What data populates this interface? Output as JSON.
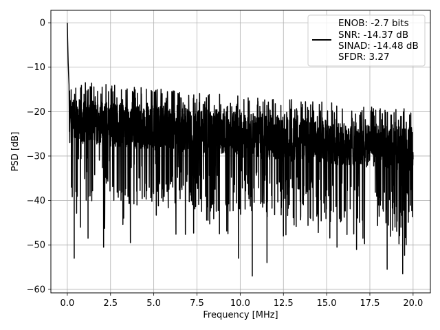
{
  "chart_data": {
    "type": "line",
    "title": "",
    "xlabel": "Frequency [MHz]",
    "ylabel": "PSD [dB]",
    "xlim": [
      -0.95,
      21.0
    ],
    "ylim": [
      -60.8,
      2.8
    ],
    "xticks": [
      0.0,
      2.5,
      5.0,
      7.5,
      10.0,
      12.5,
      15.0,
      17.5,
      20.0
    ],
    "xtick_labels": [
      "0.0",
      "2.5",
      "5.0",
      "7.5",
      "10.0",
      "12.5",
      "15.0",
      "17.5",
      "20.0"
    ],
    "yticks": [
      0,
      -10,
      -20,
      -30,
      -40,
      -50,
      -60
    ],
    "ytick_labels": [
      "0",
      "−10",
      "−20",
      "−30",
      "−40",
      "−50",
      "−60"
    ],
    "grid": true,
    "legend_position": "top-right",
    "legend_entries": [
      "ENOB: -2.7 bits",
      "SNR: -14.37 dB",
      "SINAD: -14.48 dB",
      "SFDR: 3.27"
    ],
    "series": [
      {
        "color": "#000000",
        "x": [
          0.0,
          0.02,
          0.05,
          0.1,
          0.4,
          0.5,
          1.2,
          2.1,
          3.65,
          8.8,
          9.9,
          10.7,
          11.55,
          12.5,
          15.6,
          17.1,
          18.5,
          19.4,
          20.0
        ],
        "y": [
          0.0,
          -4.0,
          -9.0,
          -14.0,
          -53.0,
          -38.0,
          -48.5,
          -50.5,
          -49.5,
          -47.5,
          -53.0,
          -57.0,
          -54.0,
          -48.0,
          -50.5,
          -48.5,
          -55.5,
          -56.5,
          -30.0
        ]
      }
    ],
    "noise_floor_mean_db": -27.0
  }
}
